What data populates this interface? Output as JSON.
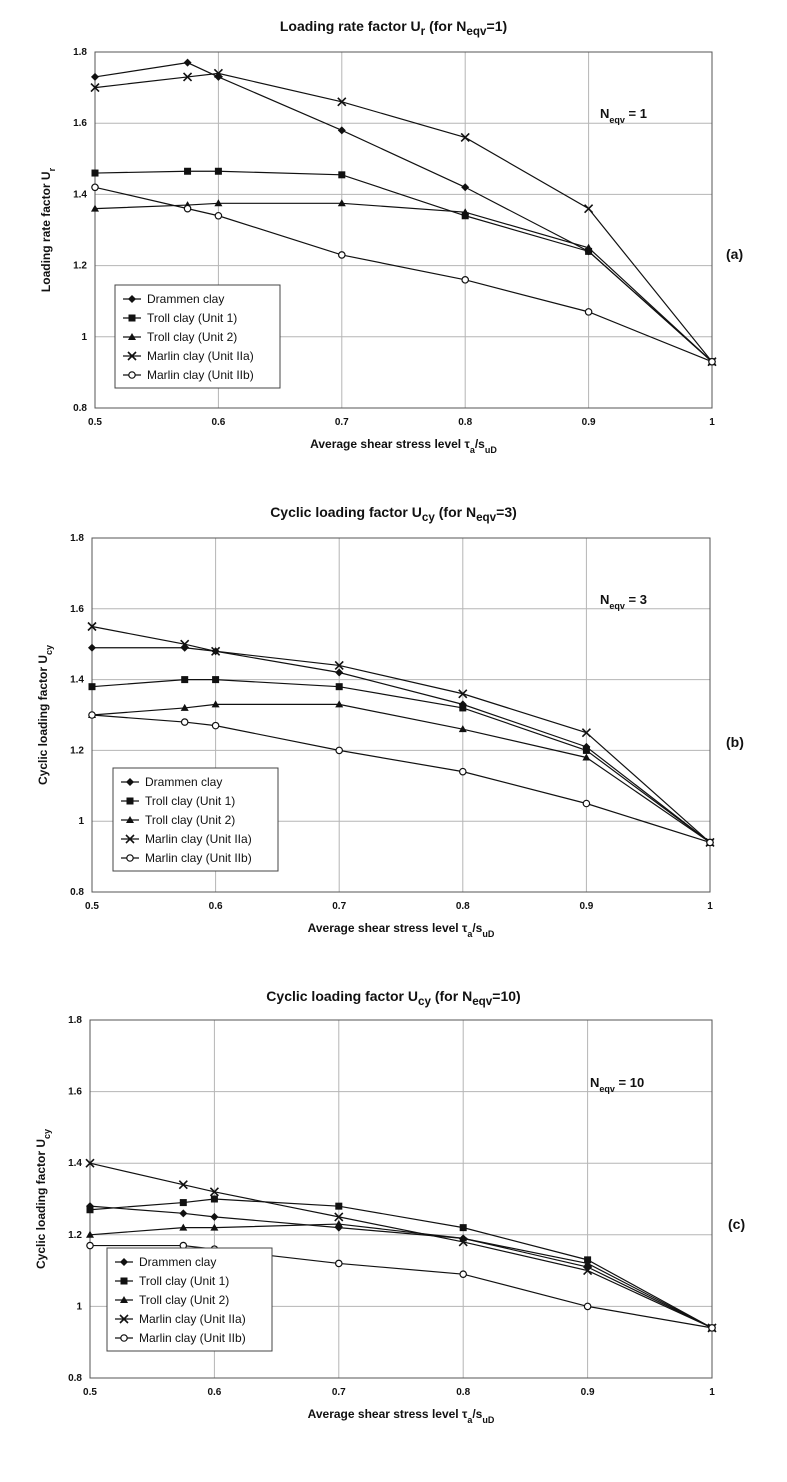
{
  "chart_data": [
    {
      "type": "line",
      "panel_label": "(a)",
      "title_main": "Loading rate factor U",
      "title_sub": "r",
      "title_mid": " (for N",
      "title_sub2": "eqv",
      "title_end": "=1)",
      "ylabel_main": "Loading rate factor U",
      "ylabel_sub": "r",
      "xlabel_main": "Average shear stress level τ",
      "xlabel_sub1": "a",
      "xlabel_mid": "/s",
      "xlabel_sub2": "uD",
      "neqv_main": "N",
      "neqv_sub": "eqv",
      "neqv_value": " = 1",
      "xlim": [
        0.5,
        1.0
      ],
      "ylim": [
        0.8,
        1.8
      ],
      "xticks": [
        "0.5",
        "0.6",
        "0.7",
        "0.8",
        "0.9",
        "1"
      ],
      "xtick_values": [
        0.5,
        0.6,
        0.7,
        0.8,
        0.9,
        1.0
      ],
      "yticks": [
        "0.8",
        "1",
        "1.2",
        "1.4",
        "1.6",
        "1.8"
      ],
      "ytick_values": [
        0.8,
        1.0,
        1.2,
        1.4,
        1.6,
        1.8
      ],
      "grid": true,
      "legend_position": "bottom-left",
      "series": [
        {
          "name": "Drammen clay",
          "marker": "diamond",
          "x": [
            0.5,
            0.575,
            0.6,
            0.7,
            0.8,
            0.9,
            1.0
          ],
          "y": [
            1.73,
            1.77,
            1.73,
            1.58,
            1.42,
            1.24,
            0.93
          ]
        },
        {
          "name": "Troll clay (Unit 1)",
          "marker": "square",
          "x": [
            0.5,
            0.575,
            0.6,
            0.7,
            0.8,
            0.9,
            1.0
          ],
          "y": [
            1.46,
            1.465,
            1.465,
            1.455,
            1.34,
            1.24,
            0.93
          ]
        },
        {
          "name": "Troll clay (Unit 2)",
          "marker": "triangle",
          "x": [
            0.5,
            0.575,
            0.6,
            0.7,
            0.8,
            0.9,
            1.0
          ],
          "y": [
            1.36,
            1.37,
            1.375,
            1.375,
            1.35,
            1.25,
            0.93
          ]
        },
        {
          "name": "Marlin clay (Unit IIa)",
          "marker": "x",
          "x": [
            0.5,
            0.575,
            0.6,
            0.7,
            0.8,
            0.9,
            1.0
          ],
          "y": [
            1.7,
            1.73,
            1.74,
            1.66,
            1.56,
            1.36,
            0.93
          ]
        },
        {
          "name": "Marlin clay (Unit IIb)",
          "marker": "circle",
          "x": [
            0.5,
            0.575,
            0.6,
            0.7,
            0.8,
            0.9,
            1.0
          ],
          "y": [
            1.42,
            1.36,
            1.34,
            1.23,
            1.16,
            1.07,
            0.93
          ]
        }
      ]
    },
    {
      "type": "line",
      "panel_label": "(b)",
      "title_main": "Cyclic loading factor U",
      "title_sub": "cy",
      "title_mid": " (for N",
      "title_sub2": "eqv",
      "title_end": "=3)",
      "ylabel_main": "Cyclic loading factor U",
      "ylabel_sub": "cy",
      "xlabel_main": "Average shear stress level τ",
      "xlabel_sub1": "a",
      "xlabel_mid": "/s",
      "xlabel_sub2": "uD",
      "neqv_main": "N",
      "neqv_sub": "eqv",
      "neqv_value": " = 3",
      "xlim": [
        0.5,
        1.0
      ],
      "ylim": [
        0.8,
        1.8
      ],
      "xticks": [
        "0.5",
        "0.6",
        "0.7",
        "0.8",
        "0.9",
        "1"
      ],
      "xtick_values": [
        0.5,
        0.6,
        0.7,
        0.8,
        0.9,
        1.0
      ],
      "yticks": [
        "0.8",
        "1",
        "1.2",
        "1.4",
        "1.6",
        "1.8"
      ],
      "ytick_values": [
        0.8,
        1.0,
        1.2,
        1.4,
        1.6,
        1.8
      ],
      "grid": true,
      "legend_position": "bottom-left",
      "series": [
        {
          "name": "Drammen clay",
          "marker": "diamond",
          "x": [
            0.5,
            0.575,
            0.6,
            0.7,
            0.8,
            0.9,
            1.0
          ],
          "y": [
            1.49,
            1.49,
            1.48,
            1.42,
            1.33,
            1.21,
            0.94
          ]
        },
        {
          "name": "Troll clay (Unit 1)",
          "marker": "square",
          "x": [
            0.5,
            0.575,
            0.6,
            0.7,
            0.8,
            0.9,
            1.0
          ],
          "y": [
            1.38,
            1.4,
            1.4,
            1.38,
            1.32,
            1.2,
            0.94
          ]
        },
        {
          "name": "Troll clay (Unit 2)",
          "marker": "triangle",
          "x": [
            0.5,
            0.575,
            0.6,
            0.7,
            0.8,
            0.9,
            1.0
          ],
          "y": [
            1.3,
            1.32,
            1.33,
            1.33,
            1.26,
            1.18,
            0.94
          ]
        },
        {
          "name": "Marlin clay (Unit IIa)",
          "marker": "x",
          "x": [
            0.5,
            0.575,
            0.6,
            0.7,
            0.8,
            0.9,
            1.0
          ],
          "y": [
            1.55,
            1.5,
            1.48,
            1.44,
            1.36,
            1.25,
            0.94
          ]
        },
        {
          "name": "Marlin clay (Unit IIb)",
          "marker": "circle",
          "x": [
            0.5,
            0.575,
            0.6,
            0.7,
            0.8,
            0.9,
            1.0
          ],
          "y": [
            1.3,
            1.28,
            1.27,
            1.2,
            1.14,
            1.05,
            0.94
          ]
        }
      ]
    },
    {
      "type": "line",
      "panel_label": "(c)",
      "title_main": "Cyclic loading factor U",
      "title_sub": "cy",
      "title_mid": " (for N",
      "title_sub2": "eqv",
      "title_end": "=10)",
      "ylabel_main": "Cyclic loading factor U",
      "ylabel_sub": "cy",
      "xlabel_main": "Average shear stress level τ",
      "xlabel_sub1": "a",
      "xlabel_mid": "/s",
      "xlabel_sub2": "uD",
      "neqv_main": "N",
      "neqv_sub": "eqv",
      "neqv_value": " = 10",
      "xlim": [
        0.5,
        1.0
      ],
      "ylim": [
        0.8,
        1.8
      ],
      "xticks": [
        "0.5",
        "0.6",
        "0.7",
        "0.8",
        "0.9",
        "1"
      ],
      "xtick_values": [
        0.5,
        0.6,
        0.7,
        0.8,
        0.9,
        1.0
      ],
      "yticks": [
        "0.8",
        "1",
        "1.2",
        "1.4",
        "1.6",
        "1.8"
      ],
      "ytick_values": [
        0.8,
        1.0,
        1.2,
        1.4,
        1.6,
        1.8
      ],
      "grid": true,
      "legend_position": "bottom-left",
      "series": [
        {
          "name": "Drammen clay",
          "marker": "diamond",
          "x": [
            0.5,
            0.575,
            0.6,
            0.7,
            0.8,
            0.9,
            1.0
          ],
          "y": [
            1.28,
            1.26,
            1.25,
            1.22,
            1.19,
            1.11,
            0.94
          ]
        },
        {
          "name": "Troll clay (Unit 1)",
          "marker": "square",
          "x": [
            0.5,
            0.575,
            0.6,
            0.7,
            0.8,
            0.9,
            1.0
          ],
          "y": [
            1.27,
            1.29,
            1.3,
            1.28,
            1.22,
            1.13,
            0.94
          ]
        },
        {
          "name": "Troll clay (Unit 2)",
          "marker": "triangle",
          "x": [
            0.5,
            0.575,
            0.6,
            0.7,
            0.8,
            0.9,
            1.0
          ],
          "y": [
            1.2,
            1.22,
            1.22,
            1.23,
            1.19,
            1.12,
            0.94
          ]
        },
        {
          "name": "Marlin clay (Unit IIa)",
          "marker": "x",
          "x": [
            0.5,
            0.575,
            0.6,
            0.7,
            0.8,
            0.9,
            1.0
          ],
          "y": [
            1.4,
            1.34,
            1.32,
            1.25,
            1.18,
            1.1,
            0.94
          ]
        },
        {
          "name": "Marlin clay (Unit IIb)",
          "marker": "circle",
          "x": [
            0.5,
            0.575,
            0.6,
            0.7,
            0.8,
            0.9,
            1.0
          ],
          "y": [
            1.17,
            1.17,
            1.16,
            1.12,
            1.09,
            1.0,
            0.94
          ]
        }
      ]
    }
  ]
}
